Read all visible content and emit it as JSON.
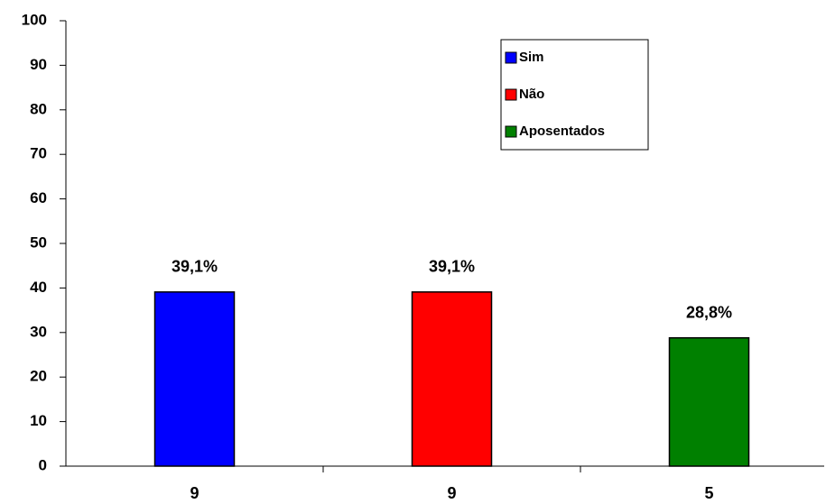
{
  "chart_data": {
    "type": "bar",
    "categories": [
      "9",
      "9",
      "5"
    ],
    "series": [
      {
        "name": "Sim",
        "color": "#0000ff",
        "values": [
          39.1,
          null,
          null
        ],
        "value_labels": [
          "39,1%",
          null,
          null
        ]
      },
      {
        "name": "Não",
        "color": "#ff0000",
        "values": [
          null,
          39.1,
          null
        ],
        "value_labels": [
          null,
          "39,1%",
          null
        ]
      },
      {
        "name": "Aposentados",
        "color": "#008000",
        "values": [
          null,
          null,
          28.8
        ],
        "value_labels": [
          null,
          null,
          "28,8%"
        ]
      }
    ],
    "ylim": [
      0,
      100
    ],
    "yticks": [
      0,
      10,
      20,
      30,
      40,
      50,
      60,
      70,
      80,
      90,
      100
    ],
    "grid": false,
    "legend": "top-right"
  }
}
